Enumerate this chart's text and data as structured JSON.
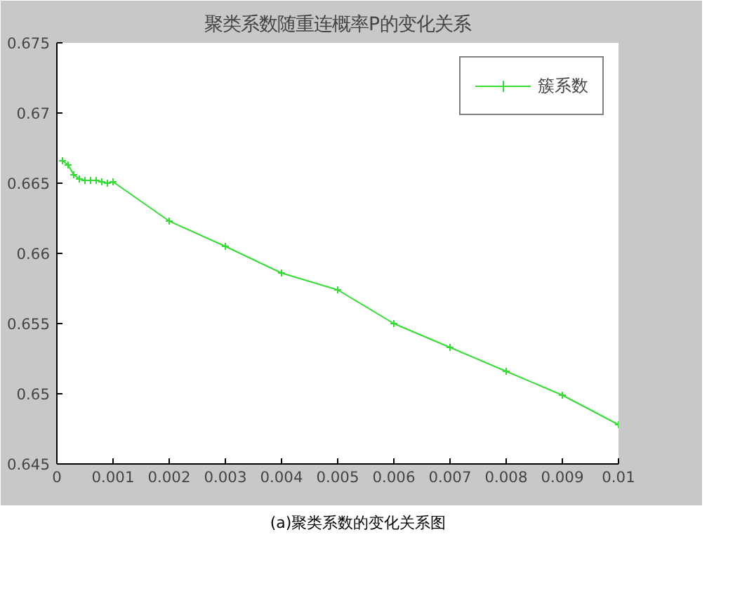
{
  "chart_data": {
    "type": "line",
    "title": "聚类系数随重连概率P的变化关系",
    "x": [
      0.0001,
      0.0002,
      0.0003,
      0.0004,
      0.0005,
      0.0006,
      0.0007,
      0.0008,
      0.0009,
      0.001,
      0.002,
      0.003,
      0.004,
      0.005,
      0.006,
      0.007,
      0.008,
      0.009,
      0.01
    ],
    "series": [
      {
        "name": "簇系数",
        "color": "#33dd33",
        "values": [
          0.6666,
          0.6663,
          0.6656,
          0.6653,
          0.6652,
          0.6652,
          0.6652,
          0.6651,
          0.665,
          0.6651,
          0.6623,
          0.6605,
          0.6586,
          0.6574,
          0.655,
          0.6533,
          0.6516,
          0.6499,
          0.6478
        ]
      }
    ],
    "xlim": [
      0,
      0.01
    ],
    "xticks": [
      0,
      0.001,
      0.002,
      0.003,
      0.004,
      0.005,
      0.006,
      0.007,
      0.008,
      0.009,
      0.01
    ],
    "ylim": [
      0.645,
      0.675
    ],
    "yticks": [
      0.645,
      0.65,
      0.655,
      0.66,
      0.665,
      0.67,
      0.675
    ],
    "grid": false,
    "legend": "top right",
    "marker": "cross",
    "line_style": "solid",
    "annotations": [
      "(a)聚类系数的变化关系图"
    ]
  }
}
